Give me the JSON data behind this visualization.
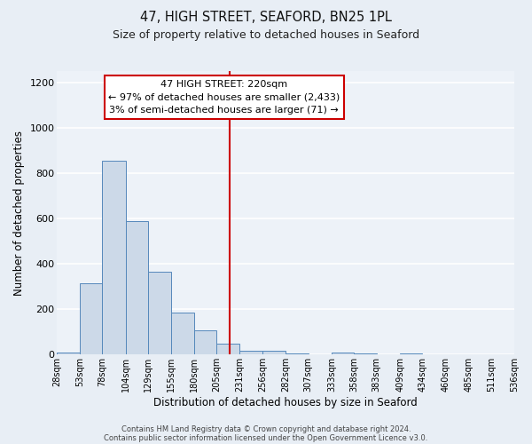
{
  "title": "47, HIGH STREET, SEAFORD, BN25 1PL",
  "subtitle": "Size of property relative to detached houses in Seaford",
  "xlabel": "Distribution of detached houses by size in Seaford",
  "ylabel": "Number of detached properties",
  "bar_color": "#ccd9e8",
  "bar_edge_color": "#5588bb",
  "background_color": "#e8eef5",
  "plot_bg_color": "#edf2f8",
  "grid_color": "#ffffff",
  "vline_value": 220,
  "vline_color": "#cc0000",
  "bin_edges": [
    28,
    53,
    78,
    104,
    129,
    155,
    180,
    205,
    231,
    256,
    282,
    307,
    333,
    358,
    383,
    409,
    434,
    460,
    485,
    511,
    536
  ],
  "bin_heights": [
    10,
    315,
    855,
    590,
    365,
    185,
    105,
    50,
    15,
    15,
    5,
    0,
    10,
    5,
    0,
    5,
    0,
    0,
    0,
    0
  ],
  "tick_labels": [
    "28sqm",
    "53sqm",
    "78sqm",
    "104sqm",
    "129sqm",
    "155sqm",
    "180sqm",
    "205sqm",
    "231sqm",
    "256sqm",
    "282sqm",
    "307sqm",
    "333sqm",
    "358sqm",
    "383sqm",
    "409sqm",
    "434sqm",
    "460sqm",
    "485sqm",
    "511sqm",
    "536sqm"
  ],
  "ylim": [
    0,
    1250
  ],
  "yticks": [
    0,
    200,
    400,
    600,
    800,
    1000,
    1200
  ],
  "annotation_title": "47 HIGH STREET: 220sqm",
  "annotation_line1": "← 97% of detached houses are smaller (2,433)",
  "annotation_line2": "3% of semi-detached houses are larger (71) →",
  "annotation_box_color": "#ffffff",
  "annotation_box_edge": "#cc0000",
  "footnote1": "Contains HM Land Registry data © Crown copyright and database right 2024.",
  "footnote2": "Contains public sector information licensed under the Open Government Licence v3.0."
}
